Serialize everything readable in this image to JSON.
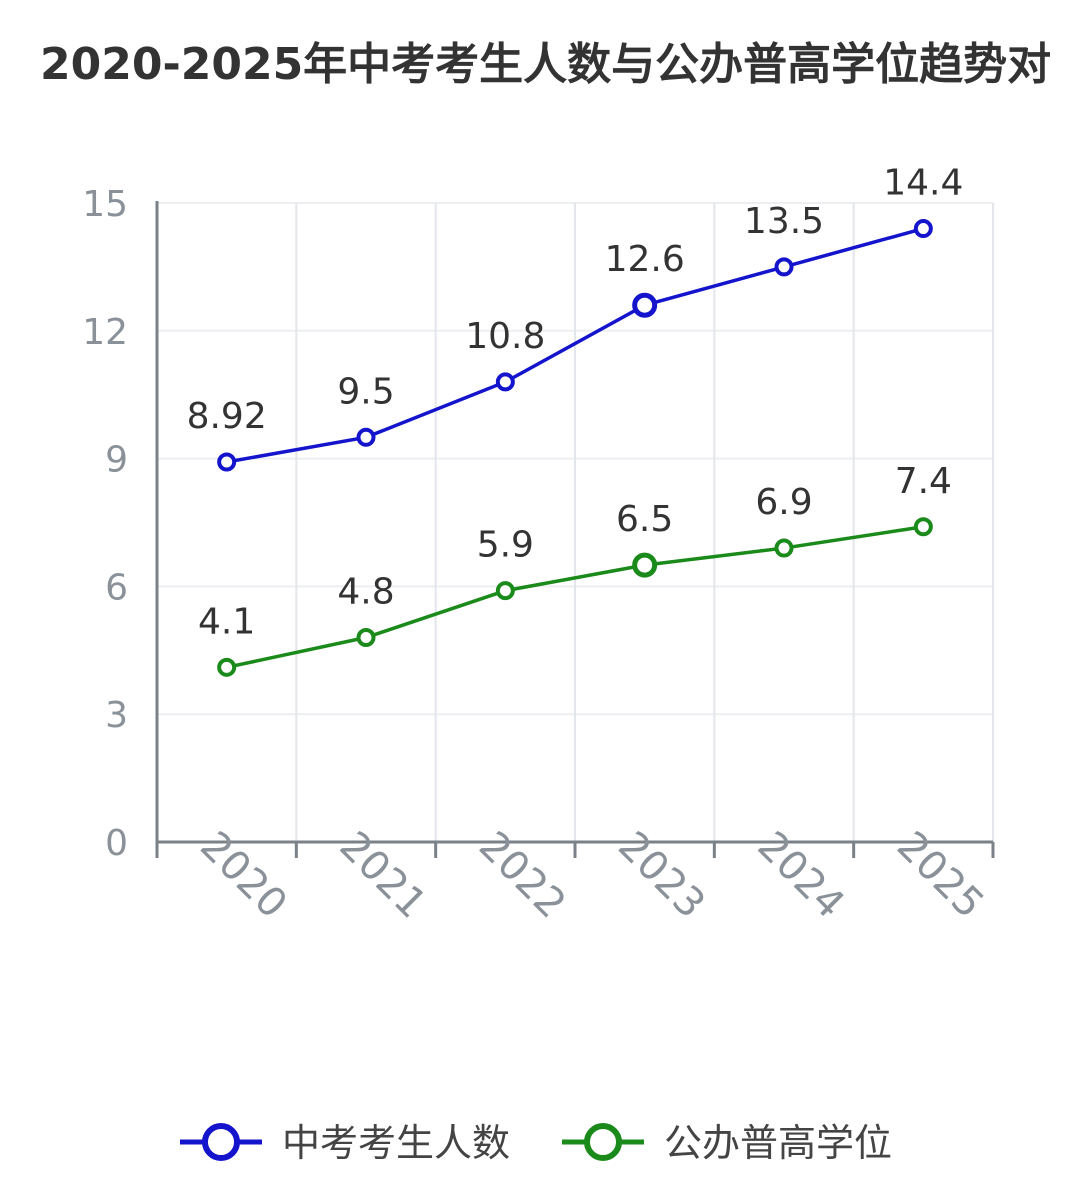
{
  "title": "2020-2025年中考考生人数与公办普高学位趋势对",
  "chart_data": {
    "type": "line",
    "title": "2020-2025年中考考生人数与公办普高学位趋势对",
    "categories": [
      "2020",
      "2021",
      "2022",
      "2023",
      "2024",
      "2025"
    ],
    "ylim": [
      0,
      15
    ],
    "yticks": [
      "0",
      "3",
      "6",
      "9",
      "12",
      "15"
    ],
    "grid": true,
    "legend_position": "bottom",
    "series": [
      {
        "name": "中考考生人数",
        "color": "#1414cc",
        "values": [
          8.92,
          9.5,
          10.8,
          12.6,
          13.5,
          14.4
        ],
        "labels": [
          "8.92",
          "9.5",
          "10.8",
          "12.6",
          "13.5",
          "14.4"
        ]
      },
      {
        "name": "公办普高学位",
        "color": "#1a8a1a",
        "values": [
          4.1,
          4.8,
          5.9,
          6.5,
          6.9,
          7.4
        ],
        "labels": [
          "4.1",
          "4.8",
          "5.9",
          "6.5",
          "6.9",
          "7.4"
        ]
      }
    ]
  }
}
